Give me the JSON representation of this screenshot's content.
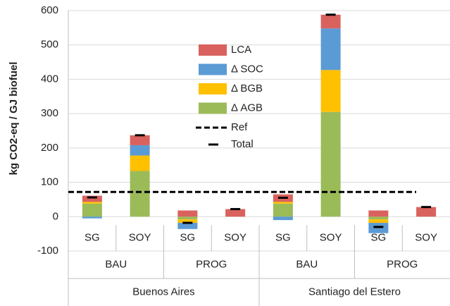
{
  "chart_data": {
    "type": "bar",
    "y_label": "kg CO2-eq / GJ biofuel",
    "categories": [
      "SG",
      "SOY",
      "SG",
      "SOY",
      "SG",
      "SOY",
      "SG",
      "SOY"
    ],
    "group_labels": [
      "BAU",
      "PROG",
      "BAU",
      "PROG"
    ],
    "region_labels": [
      "Buenos Aires",
      "Santiago del Estero"
    ],
    "series": [
      {
        "name": "LCA",
        "color": "#d9625e",
        "values": [
          18,
          29,
          18,
          22,
          22,
          40,
          18,
          28
        ]
      },
      {
        "name": "Δ SOC",
        "color": "#5b9bd5",
        "values": [
          -5,
          30,
          -18,
          0,
          -10,
          121,
          -30,
          0
        ]
      },
      {
        "name": "Δ BGB",
        "color": "#ffc000",
        "values": [
          5,
          45,
          -10,
          0,
          5,
          122,
          -10,
          0
        ]
      },
      {
        "name": "Δ AGB",
        "color": "#9bbb59",
        "values": [
          38,
          133,
          -8,
          0,
          38,
          305,
          -8,
          0
        ]
      }
    ],
    "reference": {
      "name": "Ref",
      "value": 72
    },
    "total": {
      "name": "Total",
      "values": [
        56,
        237,
        -18,
        22,
        55,
        588,
        -30,
        28
      ]
    },
    "ylim": [
      -100,
      600
    ],
    "yticks": [
      -100,
      0,
      100,
      200,
      300,
      400,
      500,
      600
    ],
    "grid": true
  }
}
